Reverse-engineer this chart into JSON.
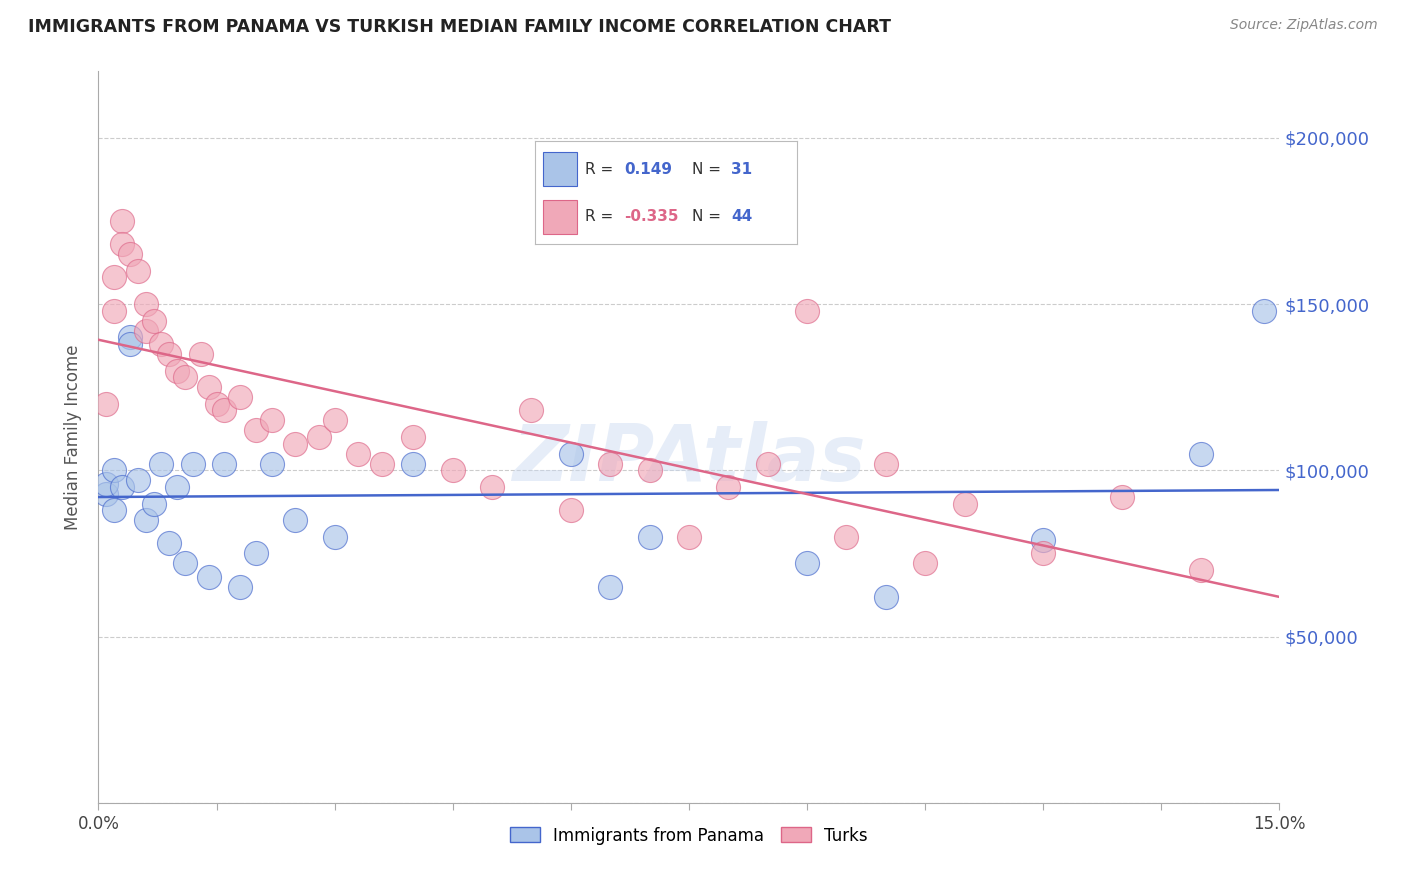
{
  "title": "IMMIGRANTS FROM PANAMA VS TURKISH MEDIAN FAMILY INCOME CORRELATION CHART",
  "source": "Source: ZipAtlas.com",
  "ylabel": "Median Family Income",
  "xmin": 0.0,
  "xmax": 0.15,
  "ymin": 0,
  "ymax": 220000,
  "yticks": [
    0,
    50000,
    100000,
    150000,
    200000
  ],
  "ytick_labels": [
    "",
    "$50,000",
    "$100,000",
    "$150,000",
    "$200,000"
  ],
  "legend_panama_R": "0.149",
  "legend_panama_N": "31",
  "legend_turks_R": "-0.335",
  "legend_turks_N": "44",
  "color_panama": "#aac4e8",
  "color_turks": "#f0a8b8",
  "color_line_panama": "#4466cc",
  "color_line_turks": "#dd6688",
  "color_label_blue": "#4466cc",
  "color_label_pink": "#dd6688",
  "watermark": "ZIPAtlas",
  "panama_x": [
    0.001,
    0.001,
    0.002,
    0.002,
    0.003,
    0.004,
    0.004,
    0.005,
    0.006,
    0.007,
    0.008,
    0.009,
    0.01,
    0.011,
    0.012,
    0.014,
    0.016,
    0.018,
    0.02,
    0.022,
    0.025,
    0.03,
    0.04,
    0.06,
    0.065,
    0.07,
    0.09,
    0.1,
    0.12,
    0.14,
    0.148
  ],
  "panama_y": [
    93000,
    96000,
    100000,
    88000,
    95000,
    140000,
    138000,
    97000,
    85000,
    90000,
    102000,
    78000,
    95000,
    72000,
    102000,
    68000,
    102000,
    65000,
    75000,
    102000,
    85000,
    80000,
    102000,
    105000,
    65000,
    80000,
    72000,
    62000,
    79000,
    105000,
    148000
  ],
  "turks_x": [
    0.001,
    0.002,
    0.002,
    0.003,
    0.003,
    0.004,
    0.005,
    0.006,
    0.006,
    0.007,
    0.008,
    0.009,
    0.01,
    0.011,
    0.013,
    0.014,
    0.015,
    0.016,
    0.018,
    0.02,
    0.022,
    0.025,
    0.028,
    0.03,
    0.033,
    0.036,
    0.04,
    0.045,
    0.05,
    0.055,
    0.06,
    0.065,
    0.07,
    0.075,
    0.08,
    0.085,
    0.09,
    0.095,
    0.1,
    0.105,
    0.11,
    0.12,
    0.13,
    0.14
  ],
  "turks_y": [
    120000,
    158000,
    148000,
    175000,
    168000,
    165000,
    160000,
    142000,
    150000,
    145000,
    138000,
    135000,
    130000,
    128000,
    135000,
    125000,
    120000,
    118000,
    122000,
    112000,
    115000,
    108000,
    110000,
    115000,
    105000,
    102000,
    110000,
    100000,
    95000,
    118000,
    88000,
    102000,
    100000,
    80000,
    95000,
    102000,
    148000,
    80000,
    102000,
    72000,
    90000,
    75000,
    92000,
    70000
  ],
  "grid_color": "#cccccc",
  "grid_style": "--",
  "background_color": "#ffffff",
  "fig_width": 14.06,
  "fig_height": 8.92,
  "scatter_size": 300
}
